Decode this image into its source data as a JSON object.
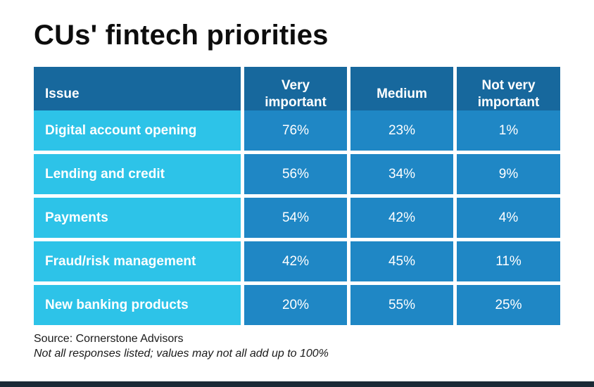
{
  "title": "CUs' fintech priorities",
  "table": {
    "columns": [
      "Issue",
      "Very important",
      "Medium",
      "Not very important"
    ],
    "rows": [
      [
        "Digital account opening",
        "76%",
        "23%",
        "1%"
      ],
      [
        "Lending and credit",
        "56%",
        "34%",
        "9%"
      ],
      [
        "Payments",
        "54%",
        "42%",
        "4%"
      ],
      [
        "Fraud/risk management",
        "42%",
        "45%",
        "11%"
      ],
      [
        "New banking products",
        "20%",
        "55%",
        "25%"
      ]
    ]
  },
  "footer": {
    "source": "Source: Cornerstone Advisors",
    "note": "Not all responses listed; values may not all add up to 100%"
  },
  "colors": {
    "header_bg": "#17689d",
    "value_bg": "#1f87c5",
    "issue_bg": "#2dc3e8",
    "bottom_bar": "#1a2935",
    "title_color": "#0d0d0d",
    "cell_text": "#ffffff",
    "source_text": "#1a1a1a"
  },
  "chart_data": {
    "type": "table",
    "title": "CUs' fintech priorities",
    "categories": [
      "Digital account opening",
      "Lending and credit",
      "Payments",
      "Fraud/risk management",
      "New banking products"
    ],
    "series": [
      {
        "name": "Very important",
        "values": [
          76,
          56,
          54,
          42,
          20
        ]
      },
      {
        "name": "Medium",
        "values": [
          23,
          34,
          42,
          45,
          55
        ]
      },
      {
        "name": "Not very important",
        "values": [
          1,
          9,
          4,
          11,
          25
        ]
      }
    ],
    "unit": "%",
    "source": "Source: Cornerstone Advisors",
    "note": "Not all responses listed; values may not all add up to 100%"
  }
}
